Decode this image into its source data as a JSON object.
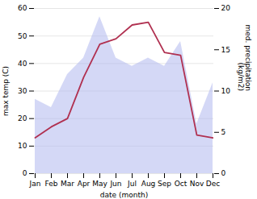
{
  "chart_data": {
    "type": "line",
    "categories": [
      "Jan",
      "Feb",
      "Mar",
      "Apr",
      "May",
      "Jun",
      "Jul",
      "Aug",
      "Sep",
      "Oct",
      "Nov",
      "Dec"
    ],
    "series": [
      {
        "type": "area",
        "color": "#b0b8ee",
        "axis": "y2",
        "values": [
          9,
          8,
          12,
          14,
          19,
          14,
          13,
          14,
          13,
          16,
          6,
          11
        ]
      },
      {
        "type": "line",
        "color": "#b03050",
        "values": [
          13,
          17,
          20,
          35,
          47,
          49,
          54,
          55,
          44,
          43,
          14,
          13
        ]
      }
    ],
    "xlabel": "date (month)",
    "ylabel": "max temp (C)",
    "y2label": "med. precipitation\n(kg/m2)",
    "ylim": [
      0,
      60
    ],
    "yticks": [
      0,
      10,
      20,
      30,
      40,
      50,
      60
    ],
    "y2lim": [
      0,
      20
    ],
    "y2ticks": [
      0,
      5,
      10,
      15,
      20
    ],
    "grid": true
  }
}
